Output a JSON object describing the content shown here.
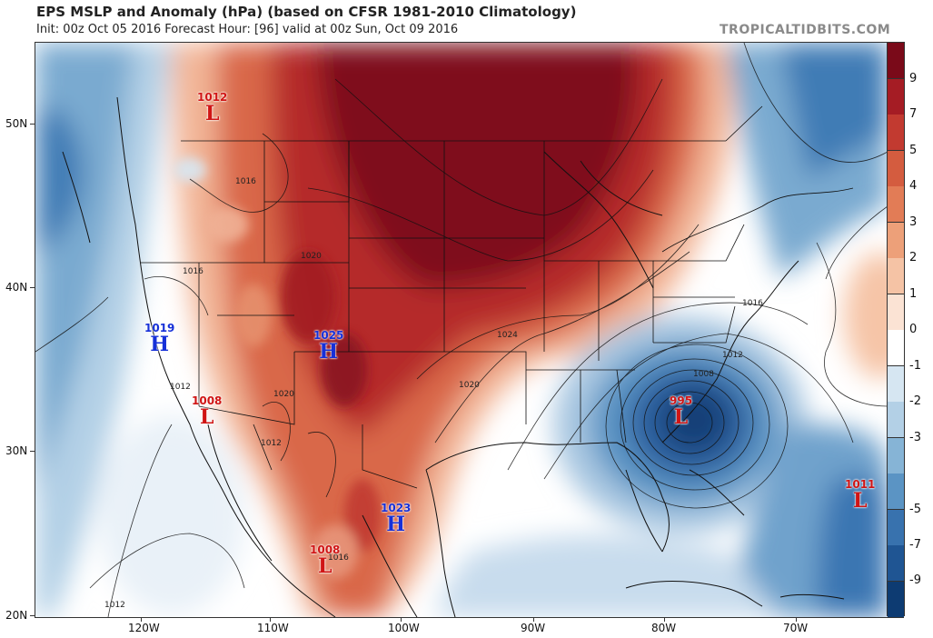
{
  "header": {
    "title": "EPS MSLP and Anomaly (hPa) (based on CFSR 1981-2010 Climatology)",
    "subtitle": "Init: 00z Oct 05 2016   Forecast Hour: [96]   valid at 00z Sun, Oct 09 2016",
    "brand": "TROPICALTIDBITS.COM"
  },
  "axes": {
    "lat_labels": [
      "50N",
      "40N",
      "30N",
      "20N"
    ],
    "lon_labels": [
      "120W",
      "110W",
      "100W",
      "90W",
      "80W",
      "70W"
    ]
  },
  "colorbar": {
    "labels": [
      "9",
      "7",
      "5",
      "4",
      "3",
      "2",
      "1",
      "0",
      "-1",
      "-2",
      "-3",
      "-5",
      "-7",
      "-9"
    ],
    "colors": [
      "#7a0a19",
      "#a51c24",
      "#c23a30",
      "#d45c3f",
      "#e27c56",
      "#eda079",
      "#f5c3a5",
      "#fbe3d4",
      "#ffffff",
      "#d6e6f2",
      "#b3d0e6",
      "#86b4d6",
      "#5b94c4",
      "#3872ae",
      "#1f5593",
      "#0d3b72"
    ]
  },
  "systems": [
    {
      "type": "L",
      "value": "1012",
      "color": "red"
    },
    {
      "type": "H",
      "value": "1019",
      "color": "blue"
    },
    {
      "type": "H",
      "value": "1025",
      "color": "blue"
    },
    {
      "type": "L",
      "value": "1008",
      "color": "red"
    },
    {
      "type": "L",
      "value": "995",
      "color": "red"
    },
    {
      "type": "H",
      "value": "1023",
      "color": "blue"
    },
    {
      "type": "L",
      "value": "1008",
      "color": "red"
    },
    {
      "type": "L",
      "value": "1011",
      "color": "red"
    }
  ],
  "contour_labels": [
    "1016",
    "1016",
    "1020",
    "1012",
    "1020",
    "1012",
    "1024",
    "1020",
    "1016",
    "1012",
    "1008",
    "1016",
    "1012"
  ]
}
